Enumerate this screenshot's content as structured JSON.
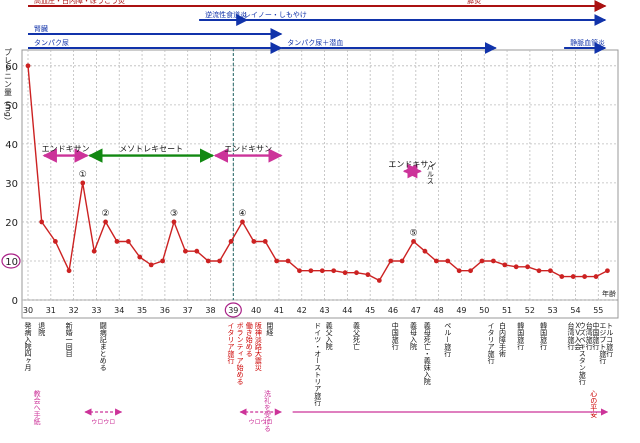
{
  "chart_data": {
    "type": "line",
    "title": "",
    "xlabel": "",
    "ylabel": "プレドニン量（mg）",
    "x_unit_label": "年齢",
    "ylim": [
      0,
      62
    ],
    "grid": true,
    "line_color": "#cc2222",
    "y_ticks": [
      "0",
      "10",
      "20",
      "30",
      "40",
      "50",
      "60"
    ],
    "highlighted_y_tick": "10",
    "x_ticks": [
      "30",
      "31",
      "32",
      "33",
      "34",
      "35",
      "36",
      "37",
      "38",
      "39",
      "40",
      "41",
      "42",
      "43",
      "44",
      "45",
      "46",
      "47",
      "48",
      "49",
      "50",
      "51",
      "52",
      "53",
      "54",
      "55"
    ],
    "highlighted_x_tick": "39",
    "series": [
      {
        "values": [
          [
            30.0,
            60
          ],
          [
            30.6,
            20
          ],
          [
            31.2,
            15
          ],
          [
            31.8,
            7.5
          ],
          [
            32.4,
            30
          ],
          [
            32.9,
            12.5
          ],
          [
            33.4,
            20
          ],
          [
            33.9,
            15
          ],
          [
            34.4,
            15
          ],
          [
            34.9,
            11
          ],
          [
            35.4,
            9
          ],
          [
            35.9,
            10
          ],
          [
            36.4,
            20
          ],
          [
            36.9,
            12.5
          ],
          [
            37.4,
            12.5
          ],
          [
            37.9,
            10
          ],
          [
            38.4,
            10
          ],
          [
            38.9,
            15
          ],
          [
            39.4,
            20
          ],
          [
            39.9,
            15
          ],
          [
            40.4,
            15
          ],
          [
            40.9,
            10
          ],
          [
            41.4,
            10
          ],
          [
            41.9,
            7.5
          ],
          [
            42.4,
            7.5
          ],
          [
            42.9,
            7.5
          ],
          [
            43.4,
            7.5
          ],
          [
            43.9,
            7
          ],
          [
            44.4,
            7
          ],
          [
            44.9,
            6.5
          ],
          [
            45.4,
            5
          ],
          [
            45.9,
            10
          ],
          [
            46.4,
            10
          ],
          [
            46.9,
            15
          ],
          [
            47.4,
            12.5
          ],
          [
            47.9,
            10
          ],
          [
            48.4,
            10
          ],
          [
            48.9,
            7.5
          ],
          [
            49.4,
            7.5
          ],
          [
            49.9,
            10
          ],
          [
            50.4,
            10
          ],
          [
            50.9,
            9
          ],
          [
            51.4,
            8.5
          ],
          [
            51.9,
            8.5
          ],
          [
            52.4,
            7.5
          ],
          [
            52.9,
            7.5
          ],
          [
            53.4,
            6
          ],
          [
            53.9,
            6
          ],
          [
            54.4,
            6
          ],
          [
            54.9,
            6
          ],
          [
            55.4,
            7.5
          ]
        ]
      }
    ],
    "circled_points": [
      {
        "label": "①",
        "x": 32.4,
        "y": 30
      },
      {
        "label": "②",
        "x": 33.4,
        "y": 20
      },
      {
        "label": "③",
        "x": 36.4,
        "y": 20
      },
      {
        "label": "④",
        "x": 39.4,
        "y": 20
      },
      {
        "label": "⑤",
        "x": 46.9,
        "y": 15
      }
    ],
    "drug_spans": [
      {
        "label": "エンドキサン",
        "from": 30.7,
        "to": 32.6,
        "y": 37,
        "color": "#cc3399"
      },
      {
        "label": "メソトレキセート",
        "from": 32.7,
        "to": 38.1,
        "y": 37,
        "color": "#118811"
      },
      {
        "label": "エンドキサン",
        "from": 38.2,
        "to": 41.1,
        "y": 37,
        "color": "#cc3399"
      },
      {
        "label": "エンドキサン",
        "from": 46.5,
        "to": 47.2,
        "y": 33,
        "color": "#cc3399"
      }
    ],
    "pulse_label": "パルス",
    "condition_bars": [
      {
        "label": "高血圧・白内障・ぼうこう炎",
        "from": 30,
        "to": 55.3,
        "row": 0,
        "color": "#aa1111"
      },
      {
        "label": "膵炎",
        "from": 47.5,
        "to": 55.3,
        "row": 0,
        "color": "#aa1111",
        "label_at_end": true
      },
      {
        "label": "逆流性食道炎",
        "from": 37.5,
        "to": 39.6,
        "row": 1,
        "color": "#1133aa"
      },
      {
        "label": "レイノー・しもやけ",
        "from": 39.2,
        "to": 55.3,
        "row": 1,
        "color": "#1133aa"
      },
      {
        "label": "腎臓",
        "from": 30,
        "to": 41.1,
        "row": 2,
        "color": "#1133aa"
      },
      {
        "label": "タンパク尿",
        "from": 30,
        "to": 41.1,
        "row": 3,
        "color": "#1133aa"
      },
      {
        "label": "タンパク尿＋潜血",
        "from": 41.1,
        "to": 50.5,
        "row": 3,
        "color": "#1133aa"
      },
      {
        "label": "静脈血管炎",
        "from": 53.5,
        "to": 55.3,
        "row": 3,
        "color": "#1133aa"
      }
    ],
    "events": [
      {
        "x": 30.0,
        "label": "発病入院四ヶ月"
      },
      {
        "x": 30.6,
        "label": "退院"
      },
      {
        "x": 31.8,
        "label": "新婚一回目"
      },
      {
        "x": 33.3,
        "label": "闘病記まとめる"
      },
      {
        "x": 38.9,
        "label": "イタリア旅行",
        "color": "#cc0000"
      },
      {
        "x": 39.3,
        "label": "ボランティア始める",
        "color": "#cc0000"
      },
      {
        "x": 39.7,
        "label": "働き始める",
        "color": "#cc0000"
      },
      {
        "x": 40.1,
        "label": "阪神淡路大震災",
        "color": "#cc0000"
      },
      {
        "x": 40.6,
        "label": "閉経"
      },
      {
        "x": 42.7,
        "label": "ドイツ・オーストリア旅行"
      },
      {
        "x": 43.2,
        "label": "義父入院"
      },
      {
        "x": 44.4,
        "label": "義父死亡"
      },
      {
        "x": 46.1,
        "label": "中国旅行"
      },
      {
        "x": 46.9,
        "label": "義母入院"
      },
      {
        "x": 47.5,
        "label": "義母死亡・義妹入院"
      },
      {
        "x": 48.4,
        "label": "ペルー旅行"
      },
      {
        "x": 50.3,
        "label": "イタリア旅行"
      },
      {
        "x": 50.8,
        "label": "白内障手術"
      },
      {
        "x": 51.6,
        "label": "韓国旅行"
      },
      {
        "x": 52.6,
        "label": "韓国旅行"
      },
      {
        "x": 53.8,
        "label": "台湾旅行"
      },
      {
        "x": 54.1,
        "label": "ＸＶ入会"
      },
      {
        "x": 54.3,
        "label": "ウズベキスタン旅行"
      },
      {
        "x": 54.6,
        "label": "台湾旅行"
      },
      {
        "x": 54.9,
        "label": "中国旅行"
      },
      {
        "x": 55.2,
        "label": "エジプト旅行"
      },
      {
        "x": 55.5,
        "label": "トルコ旅行"
      }
    ],
    "bottom_notes": [
      {
        "label": "教会へ手紙",
        "x": 30.4,
        "color": "#cc3399"
      },
      {
        "label": "洗礼を受ける",
        "x": 40.5,
        "color": "#cc3399"
      },
      {
        "label": "心の平安",
        "x": 54.8,
        "color": "#cc0000"
      }
    ],
    "bottom_spans": [
      {
        "label": "ウロウロ",
        "from": 32.5,
        "to": 34.1,
        "color": "#cc3399",
        "dashed": true
      },
      {
        "label": "ウロウロ",
        "from": 39.3,
        "to": 41.1,
        "color": "#cc3399",
        "dashed": true
      },
      {
        "label": "",
        "from": 41.6,
        "to": 55.4,
        "color": "#cc3399",
        "dashed": false
      }
    ]
  }
}
